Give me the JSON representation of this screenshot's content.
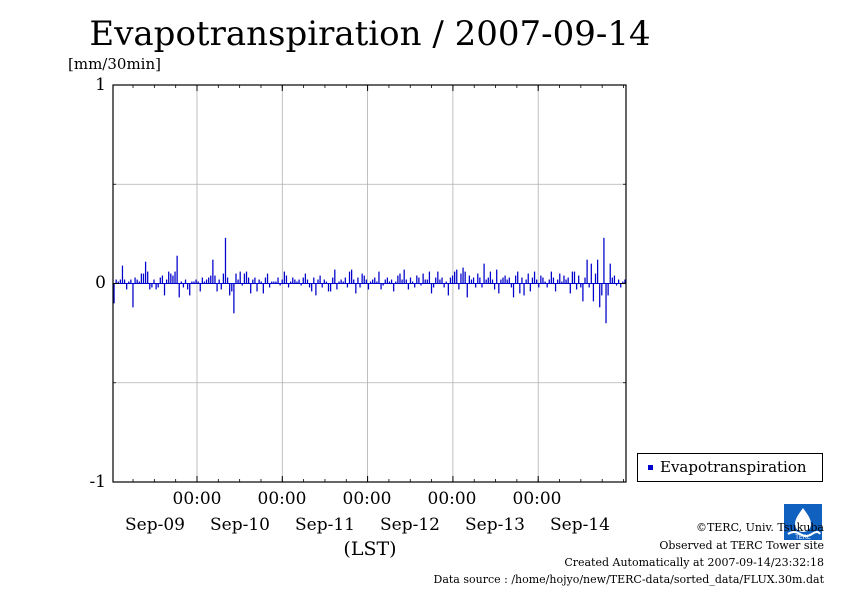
{
  "chart_data": {
    "type": "bar",
    "title": "Evapotranspiration / 2007-09-14",
    "ylabel": "[mm/30min]",
    "xlabel": "(LST)",
    "ylim": [
      -1,
      1
    ],
    "y_ticks": [
      "1",
      "0",
      "-1"
    ],
    "x_time_labels": [
      "00:00",
      "00:00",
      "00:00",
      "00:00",
      "00:00"
    ],
    "x_day_labels": [
      "Sep-09",
      "Sep-10",
      "Sep-11",
      "Sep-12",
      "Sep-13",
      "Sep-14"
    ],
    "grid": true,
    "legend_position": "right",
    "series": [
      {
        "name": "Evapotranspiration",
        "color": "#0000cc",
        "values": [
          -0.1,
          0.02,
          0.01,
          0.02,
          0.09,
          0.02,
          -0.03,
          0.01,
          0.02,
          -0.12,
          0.03,
          0.02,
          0.01,
          0.05,
          0.05,
          0.11,
          0.06,
          -0.03,
          -0.02,
          0.02,
          -0.03,
          -0.02,
          0.03,
          0.04,
          -0.06,
          0.02,
          0.06,
          0.05,
          0.04,
          0.06,
          0.14,
          -0.07,
          0.01,
          -0.02,
          0.02,
          -0.03,
          -0.06,
          0.01,
          0.01,
          0.02,
          0.01,
          -0.04,
          0.03,
          0.01,
          0.02,
          0.03,
          0.04,
          0.12,
          0.04,
          -0.04,
          0.02,
          -0.03,
          0.05,
          0.23,
          0.03,
          -0.06,
          -0.04,
          -0.15,
          0.05,
          0.02,
          0.06,
          -0.01,
          0.05,
          0.06,
          0.03,
          -0.05,
          0.02,
          0.03,
          -0.04,
          0.02,
          0.01,
          -0.05,
          0.03,
          0.05,
          -0.02,
          0.01,
          0.01,
          0.01,
          0.03,
          -0.01,
          0.02,
          0.06,
          0.04,
          -0.02,
          0.01,
          0.03,
          0.02,
          0.01,
          0.02,
          -0.01,
          0.03,
          0.05,
          0.02,
          -0.02,
          -0.04,
          0.03,
          -0.06,
          0.02,
          0.04,
          -0.02,
          0.02,
          0.01,
          -0.04,
          -0.04,
          0.03,
          0.07,
          -0.03,
          0.01,
          0.02,
          0.01,
          0.03,
          -0.02,
          0.06,
          0.07,
          0.02,
          -0.05,
          0.03,
          -0.02,
          0.05,
          0.04,
          0.02,
          -0.03,
          0.01,
          0.02,
          0.03,
          0.01,
          0.06,
          -0.03,
          -0.01,
          0.02,
          0.03,
          0.01,
          0.02,
          -0.04,
          0.01,
          0.04,
          0.05,
          0.02,
          0.07,
          0.02,
          -0.03,
          0.03,
          0.01,
          -0.02,
          0.04,
          0.03,
          -0.01,
          0.05,
          0.02,
          0.02,
          0.06,
          -0.05,
          -0.02,
          0.03,
          0.06,
          0.02,
          0.03,
          -0.02,
          0.01,
          -0.06,
          0.03,
          0.04,
          0.06,
          0.07,
          -0.03,
          0.05,
          0.08,
          0.06,
          -0.07,
          0.04,
          0.02,
          0.03,
          -0.02,
          0.05,
          0.03,
          -0.02,
          0.1,
          0.02,
          0.03,
          0.06,
          0.02,
          -0.03,
          0.07,
          -0.05,
          0.02,
          0.03,
          0.04,
          0.02,
          0.03,
          -0.02,
          -0.07,
          0.04,
          0.06,
          -0.05,
          0.03,
          -0.06,
          0.02,
          0.05,
          -0.04,
          0.03,
          0.06,
          0.02,
          -0.02,
          0.04,
          0.03,
          0.01,
          -0.02,
          0.02,
          0.06,
          0.03,
          -0.04,
          0.02,
          0.05,
          0.01,
          0.04,
          0.02,
          0.03,
          -0.05,
          0.06,
          0.06,
          -0.03,
          0.04,
          -0.02,
          -0.09,
          0.03,
          0.12,
          -0.02,
          0.1,
          -0.09,
          0.05,
          0.12,
          -0.12,
          -0.06,
          0.23,
          -0.2,
          -0.06,
          0.1,
          0.03,
          0.04,
          -0.01,
          0.02,
          -0.02,
          0.01,
          0.02
        ]
      }
    ]
  },
  "legend": {
    "label": "Evapotranspiration"
  },
  "credits": {
    "copyright": "©TERC, Univ. Tsukuba",
    "site": "Observed at TERC Tower site",
    "created": "Created Automatically at 2007-09-14/23:32:18",
    "source": "Data source : /home/hojyo/new/TERC-data/sorted_data/FLUX.30m.dat"
  }
}
